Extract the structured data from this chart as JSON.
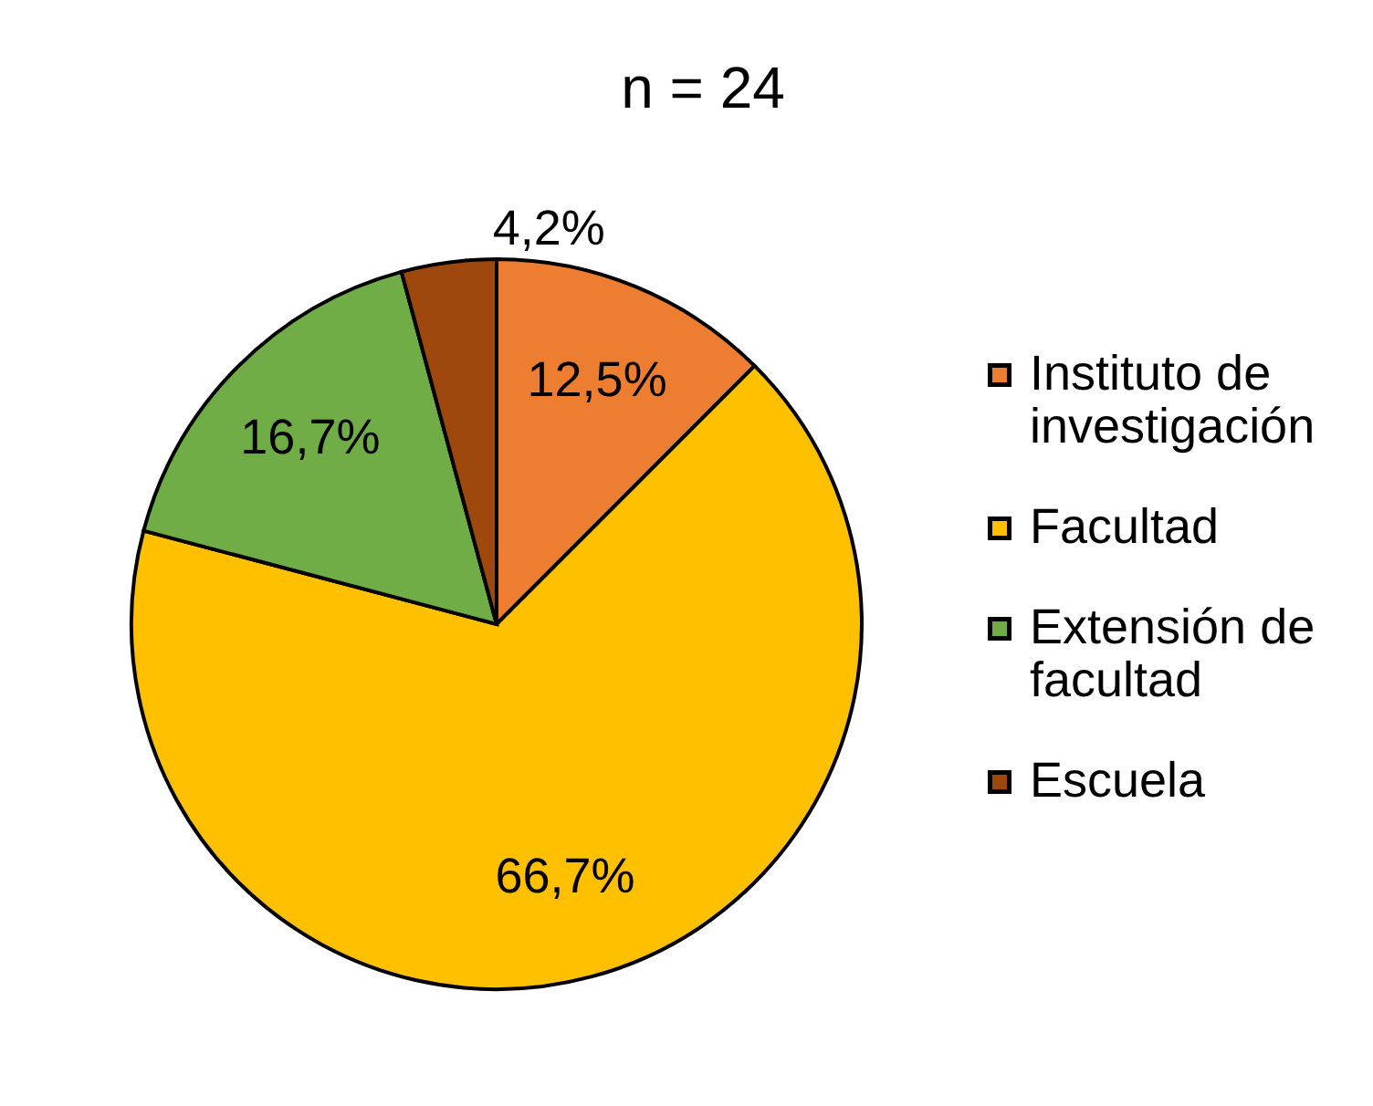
{
  "chart_data": {
    "type": "pie",
    "title": "n = 24",
    "categories": [
      "Instituto de investigación",
      "Facultad",
      "Extensión de facultad",
      "Escuela"
    ],
    "values": [
      12.5,
      66.7,
      16.7,
      4.2
    ],
    "colors": [
      "#ed7d31",
      "#ffc000",
      "#70ad47",
      "#9e480e"
    ],
    "value_labels": [
      "12,5%",
      "66,7%",
      "16,7%",
      "4,2%"
    ],
    "legend": "right"
  }
}
